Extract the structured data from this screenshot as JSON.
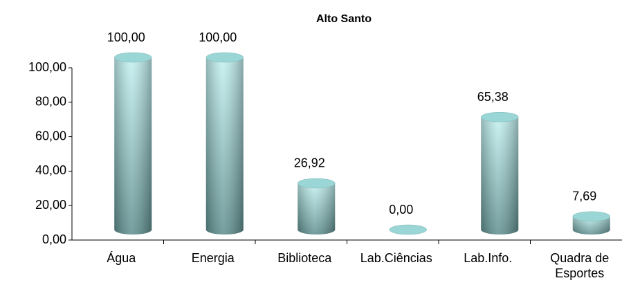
{
  "chart_data": {
    "type": "bar",
    "title": "Alto Santo",
    "categories": [
      "Água",
      "Energia",
      "Biblioteca",
      "Lab.Ciências",
      "Lab.Info.",
      "Quadra de Esportes"
    ],
    "values": [
      100,
      100,
      26.92,
      0,
      65.38,
      7.69
    ],
    "value_labels": [
      "100,00",
      "100,00",
      "26,92",
      "0,00",
      "65,38",
      "7,69"
    ],
    "color": "#9ad6d6",
    "ylim": [
      0,
      100
    ],
    "yticks": [
      {
        "value": 0,
        "label": "0,00"
      },
      {
        "value": 20,
        "label": "20,00"
      },
      {
        "value": 40,
        "label": "40,00"
      },
      {
        "value": 60,
        "label": "60,00"
      },
      {
        "value": 80,
        "label": "80,00"
      },
      {
        "value": 100,
        "label": "100,00"
      }
    ]
  }
}
